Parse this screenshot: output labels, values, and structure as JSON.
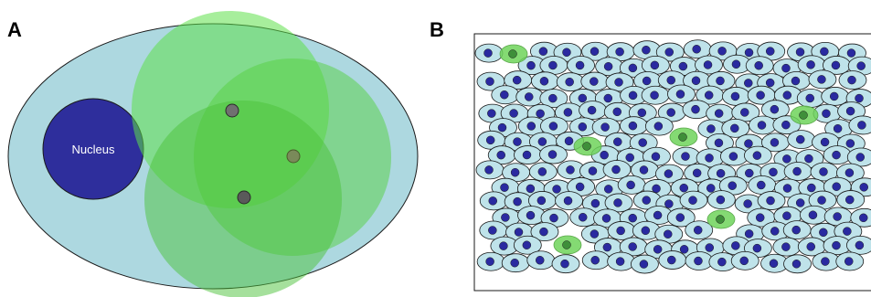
{
  "figure": {
    "panel_a": {
      "label": "A",
      "nucleus_label": "Nucleus"
    },
    "panel_b": {
      "label": "B"
    }
  },
  "colors": {
    "cytoplasm": "#add8e0",
    "nucleus": "#2e2e9c",
    "green_zone": "#66dd44",
    "outline": "#1a1a1a",
    "dot": "#707070",
    "tissue_cell": "#bfe3ea",
    "tissue_nucleus": "#2a2aa0",
    "highlight": "#6fd45a"
  }
}
